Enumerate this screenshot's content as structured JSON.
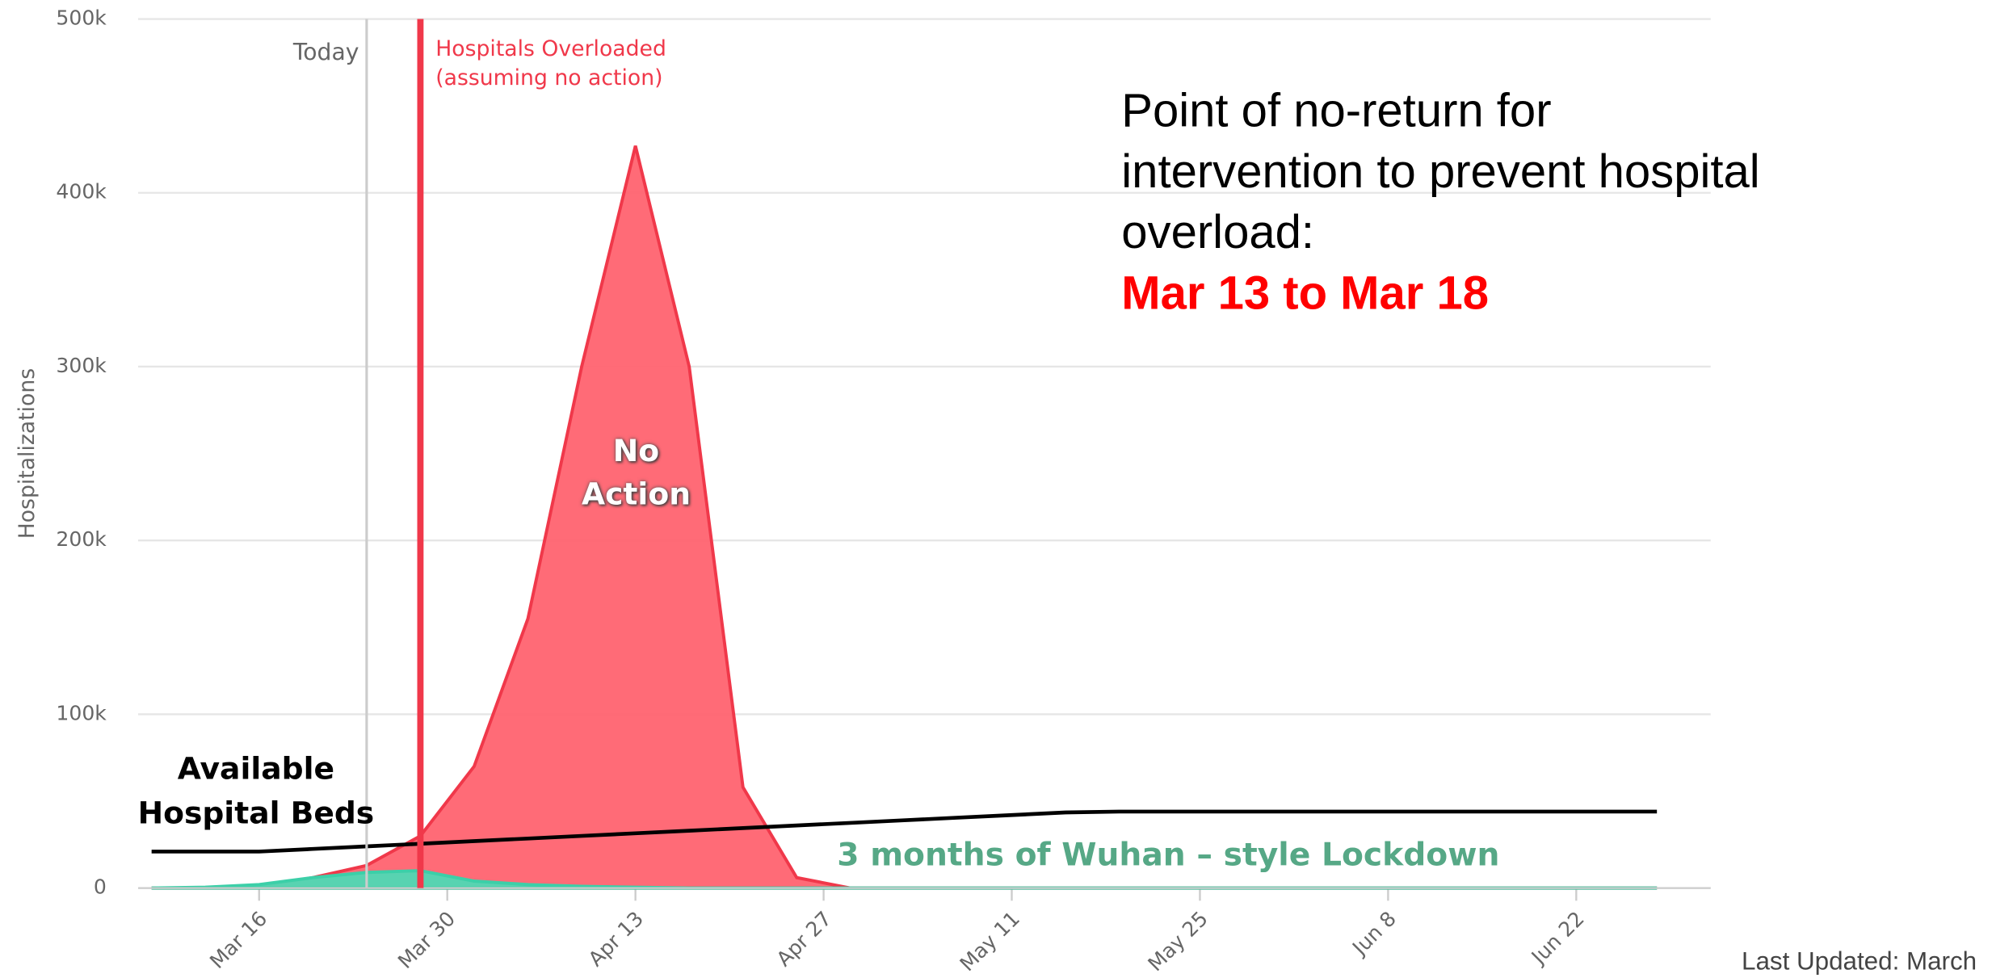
{
  "chart_data": {
    "type": "area",
    "ylabel": "Hospitalizations",
    "x": [
      "Mar 8",
      "Mar 12",
      "Mar 16",
      "Mar 20",
      "Mar 24",
      "Mar 28",
      "Apr 1",
      "Apr 5",
      "Apr 9",
      "Apr 13",
      "Apr 17",
      "Apr 21",
      "Apr 25",
      "Apr 29",
      "May 3",
      "May 7",
      "May 11",
      "May 15",
      "May 19",
      "May 23",
      "May 27",
      "May 31",
      "Jun 4",
      "Jun 8",
      "Jun 12",
      "Jun 16",
      "Jun 20",
      "Jun 24",
      "Jun 28"
    ],
    "xlim": [
      "Mar 7",
      "Jul 2"
    ],
    "xticks": [
      "Mar 16",
      "Mar 30",
      "Apr 13",
      "Apr 27",
      "May 11",
      "May 25",
      "Jun 8",
      "Jun 22"
    ],
    "ylim": [
      0,
      500000
    ],
    "yticks": [
      0,
      {
        "value": 100000,
        "label": "100k"
      },
      {
        "value": 200000,
        "label": "200k"
      },
      {
        "value": 300000,
        "label": "300k"
      },
      {
        "value": 400000,
        "label": "400k"
      },
      {
        "value": 500000,
        "label": "500k"
      }
    ],
    "grid": true,
    "series": [
      {
        "name": "No Action",
        "color": "#ff6370",
        "stroke": "#f0384a",
        "kind": "area",
        "values": [
          0,
          0,
          1000,
          6000,
          13000,
          30000,
          70000,
          155000,
          300000,
          427000,
          300000,
          58000,
          6000,
          0,
          0,
          0,
          0,
          0,
          0,
          0,
          0,
          0,
          0,
          0,
          0,
          0,
          0,
          0,
          0
        ]
      },
      {
        "name": "3 months of Wuhan – style Lockdown",
        "color": "#4fd9b4",
        "stroke": "#3ccfa8",
        "label_color": "#56a886",
        "kind": "area",
        "values": [
          0,
          500,
          2000,
          6000,
          9000,
          10000,
          4000,
          2000,
          1000,
          500,
          0,
          0,
          0,
          0,
          0,
          0,
          0,
          0,
          0,
          0,
          0,
          0,
          0,
          0,
          0,
          0,
          0,
          0,
          0
        ]
      },
      {
        "name": "Available Hospital Beds",
        "color": "#000000",
        "kind": "line",
        "values": [
          21000,
          21000,
          21000,
          22500,
          24000,
          25500,
          27000,
          28500,
          30000,
          31500,
          33000,
          34500,
          36000,
          37500,
          39000,
          40500,
          42000,
          43500,
          44000,
          44000,
          44000,
          44000,
          44000,
          44000,
          44000,
          44000,
          44000,
          44000,
          44000
        ]
      }
    ],
    "annotations": [
      {
        "x": "Mar 24",
        "label": "Today",
        "color": "#cccccc",
        "text_color": "#666666"
      },
      {
        "x": "Mar 28",
        "label": "Hospitals Overloaded (assuming no action)",
        "color": "#f0384a",
        "text_color": "#f0384a"
      }
    ],
    "note": {
      "lines": [
        "Point of no-return for",
        "intervention to prevent hospital",
        "overload:"
      ],
      "highlight": "Mar 13 to Mar 18",
      "highlight_color": "#ff0000"
    },
    "footer": "Last Updated: March"
  }
}
